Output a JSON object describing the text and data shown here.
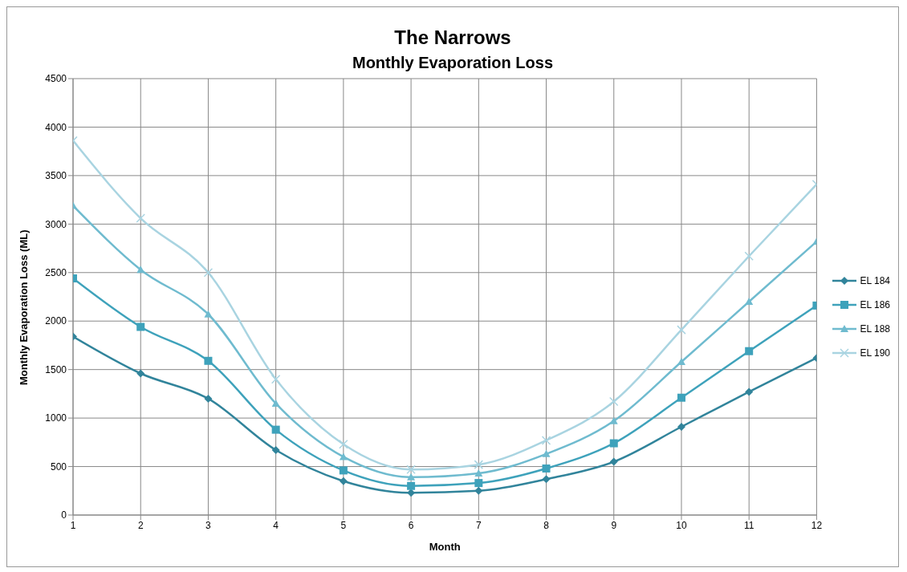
{
  "chart_data": {
    "type": "line",
    "title": "The Narrows",
    "subtitle": "Monthly Evaporation Loss",
    "xlabel": "Month",
    "ylabel": "Monthly Evaporation Loss (ML)",
    "x": [
      1,
      2,
      3,
      4,
      5,
      6,
      7,
      8,
      9,
      10,
      11,
      12
    ],
    "xlim": [
      1,
      12
    ],
    "xticks": [
      1,
      2,
      3,
      4,
      5,
      6,
      7,
      8,
      9,
      10,
      11,
      12
    ],
    "ylim": [
      0,
      4500
    ],
    "yticks": [
      0,
      500,
      1000,
      1500,
      2000,
      2500,
      3000,
      3500,
      4000,
      4500
    ],
    "grid": true,
    "legend": "right",
    "line_style": "solid",
    "series": [
      {
        "name": "EL 184",
        "color": "#31849b",
        "marker": "diamond",
        "values": [
          1840,
          1460,
          1200,
          670,
          350,
          230,
          250,
          370,
          550,
          910,
          1270,
          1620
        ]
      },
      {
        "name": "EL 186",
        "color": "#3ea2bb",
        "marker": "square",
        "values": [
          2440,
          1940,
          1590,
          880,
          460,
          300,
          330,
          480,
          740,
          1210,
          1690,
          2160
        ]
      },
      {
        "name": "EL 188",
        "color": "#6fbbcf",
        "marker": "triangle",
        "values": [
          3190,
          2530,
          2070,
          1150,
          600,
          390,
          430,
          630,
          970,
          1580,
          2200,
          2820
        ]
      },
      {
        "name": "EL 190",
        "color": "#a9d4e1",
        "marker": "cross",
        "values": [
          3860,
          3060,
          2500,
          1400,
          730,
          470,
          520,
          770,
          1170,
          1910,
          2670,
          3410
        ]
      }
    ]
  }
}
